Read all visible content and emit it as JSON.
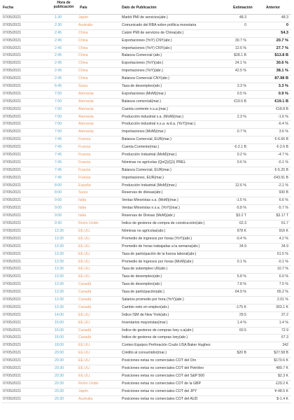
{
  "header": {
    "fecha": "Fecha",
    "hora": "Hora de publicación",
    "pais": "País",
    "dato": "Dato de Publicación",
    "estimacion": "Estimación",
    "anterior": "Anterior"
  },
  "rows": [
    {
      "fecha": "07/05/2021",
      "hora": "1:30",
      "pais": "Japón",
      "dato": "Markit PMI de servicios(abr.)",
      "est": "48.3",
      "ant": "48.3",
      "bold": false
    },
    {
      "fecha": "07/05/2021",
      "hora": "2:30",
      "pais": "Australia",
      "dato": "Comunicado del RBA sobre política monetaria",
      "est": "0",
      "ant": "0",
      "bold": true
    },
    {
      "fecha": "07/05/2021",
      "hora": "2:45",
      "pais": "China",
      "dato": "Caixin PMI de servicios de China(abr.)",
      "est": "",
      "ant": "54.3",
      "bold": true
    },
    {
      "fecha": "07/05/2021",
      "hora": "2:45",
      "pais": "China",
      "dato": "Exportaciones (YoY) CNY(abr.)",
      "est": "30.7 %",
      "ant": "20.7 %",
      "bold": true
    },
    {
      "fecha": "07/05/2021",
      "hora": "2:45",
      "pais": "China",
      "dato": "Importaciones (YoY) CNY(abr.)",
      "est": "12.6 %",
      "ant": "27.7 %",
      "bold": true
    },
    {
      "fecha": "07/05/2021",
      "hora": "2:45",
      "pais": "China",
      "dato": "Balanza Comercial (abr.)",
      "est": "$28.1 B",
      "ant": "$13.8 B",
      "bold": true
    },
    {
      "fecha": "07/05/2021",
      "hora": "2:45",
      "pais": "China",
      "dato": "Exportaciones (YoY)(abr.)",
      "est": "24.1 %",
      "ant": "30.6 %",
      "bold": true
    },
    {
      "fecha": "07/05/2021",
      "hora": "2:45",
      "pais": "China",
      "dato": "Importaciones (YoY)(abr.)",
      "est": "42.5 %",
      "ant": "38.1 %",
      "bold": true
    },
    {
      "fecha": "07/05/2021",
      "hora": "2:45",
      "pais": "China",
      "dato": "Balanza Comercial CNY(abr.)",
      "est": "",
      "ant": "87.98 B",
      "bold": true
    },
    {
      "fecha": "07/05/2021",
      "hora": "6:45",
      "pais": "Suiza",
      "dato": "Tasa de desempleo(abr.)",
      "est": "3.3 %",
      "ant": "3.3 %",
      "bold": true
    },
    {
      "fecha": "07/05/2021",
      "hora": "7:00",
      "pais": "Alemania",
      "dato": "Exportaciones (MoM)(mar.)",
      "est": "0.5 %",
      "ant": "0.9 %",
      "bold": true
    },
    {
      "fecha": "07/05/2021",
      "hora": "7:00",
      "pais": "Alemania",
      "dato": "Balanza comercial(mar.)",
      "est": "€19.5 B",
      "ant": "€19.1 B",
      "bold": true
    },
    {
      "fecha": "07/05/2021",
      "hora": "7:00",
      "pais": "Alemania",
      "dato": "Cuenta corriente n.s.a.(mar.)",
      "est": "",
      "ant": "€18.8 B",
      "bold": false
    },
    {
      "fecha": "07/05/2021",
      "hora": "7:00",
      "pais": "Alemania",
      "dato": "Producción industrial s.a. (MoM)(mar.)",
      "est": "2.3 %",
      "ant": "-1.6 %",
      "bold": false
    },
    {
      "fecha": "07/05/2021",
      "hora": "7:00",
      "pais": "Alemania",
      "dato": "Producción industrial n.s.a. w.d.a. (YoY)(mar.)",
      "est": "",
      "ant": "-6.4 %",
      "bold": false
    },
    {
      "fecha": "07/05/2021",
      "hora": "7:00",
      "pais": "Alemania",
      "dato": "Importaciones (MoM)(mar.)",
      "est": "0.7 %",
      "ant": "3.6 %",
      "bold": false
    },
    {
      "fecha": "07/05/2021",
      "hora": "7:45",
      "pais": "Francia",
      "dato": "Balanza Comercial, EUR(mar.)",
      "est": "",
      "ant": "€-6.66 B",
      "bold": false
    },
    {
      "fecha": "07/05/2021",
      "hora": "7:45",
      "pais": "Francia",
      "dato": "Cuenta Corriente(mar.)",
      "est": "€-2.1 B",
      "ant": "€-2.6 B",
      "bold": false
    },
    {
      "fecha": "07/05/2021",
      "hora": "7:45",
      "pais": "Francia",
      "dato": "Producción Industrial (MoM)(mar.)",
      "est": "0.2 %",
      "ant": "-4.7 %",
      "bold": false
    },
    {
      "fecha": "07/05/2021",
      "hora": "7:45",
      "pais": "Francia",
      "dato": "Nóminas no agrícolas (QoQ)(Q1) PREL",
      "est": "0.6 %",
      "ant": "-0.1 %",
      "bold": false
    },
    {
      "fecha": "07/05/2021",
      "hora": "7:45",
      "pais": "Francia",
      "dato": "Balanza Comercial, EUR(mar.)",
      "est": "",
      "ant": "€-5.25 B",
      "bold": false
    },
    {
      "fecha": "07/05/2021",
      "hora": "7:45",
      "pais": "Francia",
      "dato": "Importaciones, EUR(mar.)",
      "est": "",
      "ant": "€43.91 B",
      "bold": false
    },
    {
      "fecha": "07/05/2021",
      "hora": "8:00",
      "pais": "España",
      "dato": "Producción Industrial (MoM)(mar.)",
      "est": "12.6 %",
      "ant": "-2.1 %",
      "bold": false
    },
    {
      "fecha": "07/05/2021",
      "hora": "8:00",
      "pais": "Suiza",
      "dato": "Reservas de divisas(abr.)",
      "est": "",
      "ant": "930 B",
      "bold": false
    },
    {
      "fecha": "07/05/2021",
      "hora": "9:00",
      "pais": "Italia",
      "dato": "Ventas Minoristas s.a. (MoM)(mar.)",
      "est": "-1.5 %",
      "ant": "6.6 %",
      "bold": false
    },
    {
      "fecha": "07/05/2021",
      "hora": "9:00",
      "pais": "Italia",
      "dato": "Ventas Minoristas n.s.a. (YoY)(mar.)",
      "est": "-5.8 %",
      "ant": "-5.7 %",
      "bold": false
    },
    {
      "fecha": "07/05/2021",
      "hora": "9:00",
      "pais": "Italia",
      "dato": "Reservas de Divisas (MoM)(abr.)",
      "est": "$3.2 T",
      "ant": "$3.17 T",
      "bold": false
    },
    {
      "fecha": "07/05/2021",
      "hora": "9:30",
      "pais": "Reino Unido",
      "dato": "Índice de gestores de compra de construcción(abr.)",
      "est": "62.3",
      "ant": "61.7",
      "bold": false
    },
    {
      "fecha": "07/05/2021",
      "hora": "13:30",
      "pais": "EE.UU.",
      "dato": "Nóminas no agrícolas(abr.)",
      "est": "978 K",
      "ant": "916 K",
      "bold": false
    },
    {
      "fecha": "07/05/2021",
      "hora": "13:30",
      "pais": "EE.UU.",
      "dato": "Promedio de ingresos por horas (YoY)(abr.)",
      "est": "-0.4 %",
      "ant": "4.2 %",
      "bold": false
    },
    {
      "fecha": "07/05/2021",
      "hora": "13:30",
      "pais": "EE.UU.",
      "dato": "Promedio de horas trabajadas a la semana(abr.)",
      "est": "34.9",
      "ant": "34.9",
      "bold": false
    },
    {
      "fecha": "07/05/2021",
      "hora": "13:30",
      "pais": "EE.UU.",
      "dato": "Tasa de participación de la fuerza laboral(abr.)",
      "est": "",
      "ant": "61.5 %",
      "bold": false
    },
    {
      "fecha": "07/05/2021",
      "hora": "13:30",
      "pais": "EE.UU.",
      "dato": "Promedio de ingresos por horas (MoM)(abr.)",
      "est": "0.1 %",
      "ant": "-0.1 %",
      "bold": false
    },
    {
      "fecha": "07/05/2021",
      "hora": "13:30",
      "pais": "EE.UU.",
      "dato": "Tasa de subempleo U6(abr.)",
      "est": "",
      "ant": "10.7 %",
      "bold": false
    },
    {
      "fecha": "07/05/2021",
      "hora": "13:30",
      "pais": "EE.UU.",
      "dato": "Tasa de desempleo(abr.)",
      "est": "5.8 %",
      "ant": "6.0 %",
      "bold": false
    },
    {
      "fecha": "07/05/2021",
      "hora": "13:30",
      "pais": "Canadá",
      "dato": "Tasa de desempleo(abr.)",
      "est": "7.8 %",
      "ant": "7.5 %",
      "bold": false
    },
    {
      "fecha": "07/05/2021",
      "hora": "13:30",
      "pais": "Canadá",
      "dato": "Tasa de participación(abr.)",
      "est": "64.9 %",
      "ant": "65.2 %",
      "bold": false
    },
    {
      "fecha": "07/05/2021",
      "hora": "13:30",
      "pais": "Canadá",
      "dato": "Salarios promedio por hora (YoY)(abr.)",
      "est": "",
      "ant": "2.01 %",
      "bold": false
    },
    {
      "fecha": "07/05/2021",
      "hora": "13:30",
      "pais": "Canadá",
      "dato": "Cambio neto en empleo(abr.)",
      "est": "-175 K",
      "ant": "303.1 K",
      "bold": false
    },
    {
      "fecha": "07/05/2021",
      "hora": "14:00",
      "pais": "EE.UU.",
      "dato": "Índice ISM de New York(abr.)",
      "est": "29.5",
      "ant": "37.2",
      "bold": false
    },
    {
      "fecha": "07/05/2021",
      "hora": "15:00",
      "pais": "EE.UU.",
      "dato": "Inventarios mayoristas(mar.)",
      "est": "1.4 %",
      "ant": "1.4 %",
      "bold": false
    },
    {
      "fecha": "07/05/2021",
      "hora": "15:00",
      "pais": "Canadá",
      "dato": "Índice de gestores de compras Ivey s.a(abr.)",
      "est": "60.5",
      "ant": "72.9",
      "bold": false
    },
    {
      "fecha": "07/05/2021",
      "hora": "15:00",
      "pais": "Canadá",
      "dato": "Índice de gestores de compras Ivey(abr.)",
      "est": "",
      "ant": "67.3",
      "bold": false
    },
    {
      "fecha": "07/05/2021",
      "hora": "18:00",
      "pais": "EE.UU.",
      "dato": "Conteo Equipos Perforación Crudo USA Baker Hughes",
      "est": "",
      "ant": "342",
      "bold": false
    },
    {
      "fecha": "07/05/2021",
      "hora": "20:00",
      "pais": "EE.UU.",
      "dato": "Crédito al consumidor(mar.)",
      "est": "$20 B",
      "ant": "$27.58 B",
      "bold": false
    },
    {
      "fecha": "07/05/2021",
      "hora": "20:30",
      "pais": "EE.UU.",
      "dato": "Posiciones netas no comerciales COT del Oro",
      "est": "",
      "ant": "$170.6 K",
      "bold": false
    },
    {
      "fecha": "07/05/2021",
      "hora": "20:30",
      "pais": "EE.UU.",
      "dato": "Posiciones netas no comerciales COT del Petróleo",
      "est": "",
      "ant": "489.7 K",
      "bold": false
    },
    {
      "fecha": "07/05/2021",
      "hora": "20:30",
      "pais": "EE.UU.",
      "dato": "Posiciones netas no comerciales COT del S&P 500",
      "est": "",
      "ant": "$2.3 K",
      "bold": false
    },
    {
      "fecha": "07/05/2021",
      "hora": "20:30",
      "pais": "Reino Unido",
      "dato": "Posiciones netas no comerciales COT de la GBP",
      "est": "",
      "ant": "£29.2 K",
      "bold": false
    },
    {
      "fecha": "07/05/2021",
      "hora": "20:30",
      "pais": "Japón",
      "dato": "Posiciones netas no comerciales COT del JPY",
      "est": "",
      "ant": "¥-48.5 K",
      "bold": false
    },
    {
      "fecha": "07/05/2021",
      "hora": "20:30",
      "pais": "Australia",
      "dato": "Posiciones netas no comerciales COT del AUD",
      "est": "",
      "ant": "$-1.4 K",
      "bold": false
    }
  ]
}
